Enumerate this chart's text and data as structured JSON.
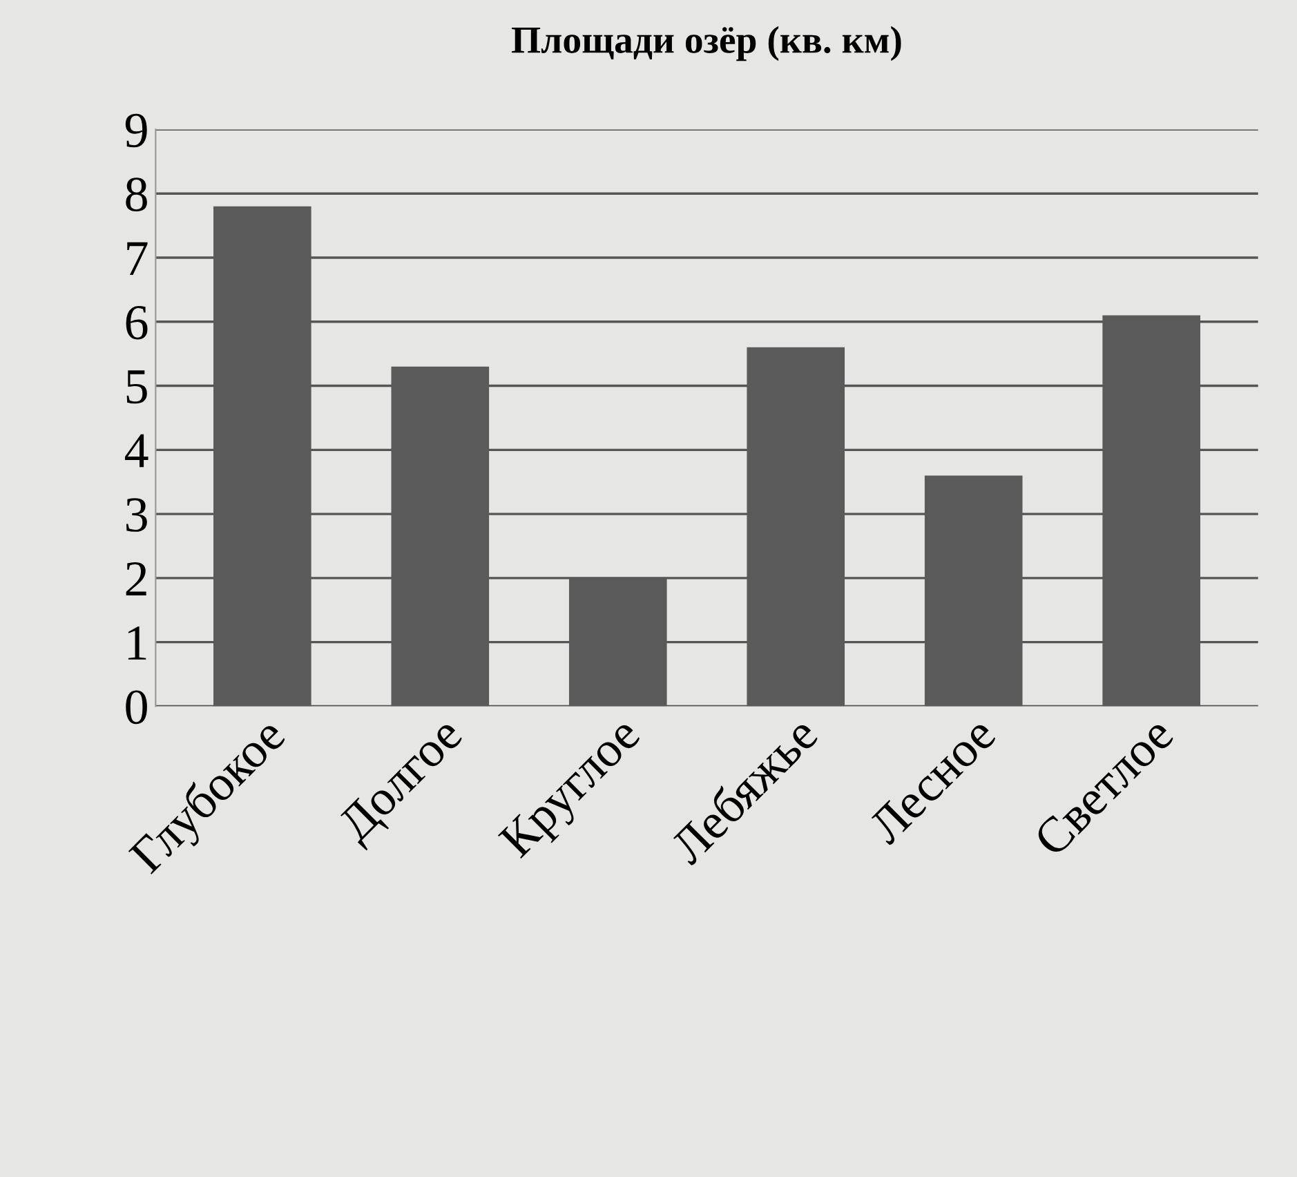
{
  "chart_data": {
    "type": "bar",
    "title": "Площади озёр (кв. км)",
    "categories": [
      "Глубокое",
      "Долгое",
      "Круглое",
      "Лебяжье",
      "Лесное",
      "Светлое"
    ],
    "values": [
      7.8,
      5.3,
      2.0,
      5.6,
      3.6,
      6.1
    ],
    "color": "#5a5a5a",
    "ylim": [
      0,
      9
    ],
    "yticks": [
      0,
      1,
      2,
      3,
      4,
      5,
      6,
      7,
      8,
      9
    ],
    "grid": "y"
  }
}
